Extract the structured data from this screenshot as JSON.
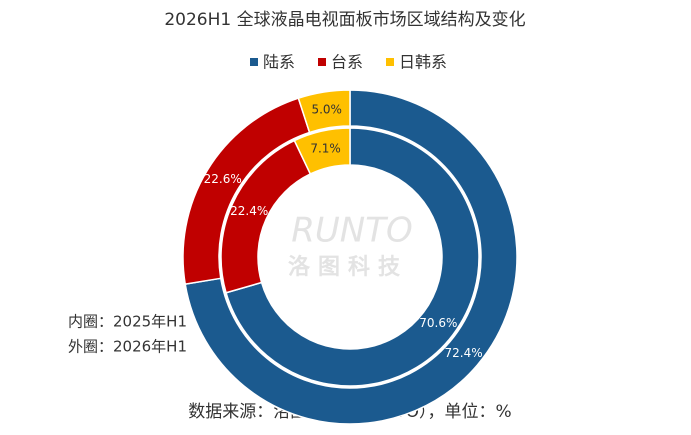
{
  "chart_data": {
    "type": "donut",
    "title": "2026H1 全球液晶电视面板市场区域结构及变化",
    "categories": [
      "陆系",
      "台系",
      "日韩系"
    ],
    "colors": [
      "#1b5a8f",
      "#c00000",
      "#ffc000"
    ],
    "series": [
      {
        "name": "内圈：2025年H1",
        "values": [
          70.6,
          22.4,
          7.1
        ],
        "value_labels": [
          "70.6%",
          "22.4%",
          "7.1%"
        ]
      },
      {
        "name": "外圈：2026年H1",
        "values": [
          72.4,
          22.6,
          5.0
        ],
        "value_labels": [
          "72.4%",
          "22.6%",
          "5.0%"
        ]
      }
    ],
    "watermark": [
      "RUNTO",
      "洛图科技"
    ],
    "source": "数据来源：洛图科技（RUNTO），单位：%"
  }
}
